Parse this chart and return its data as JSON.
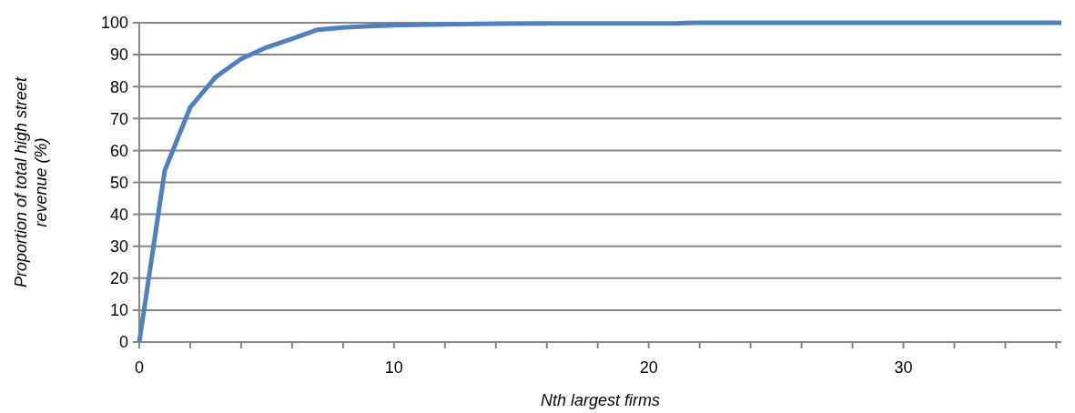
{
  "chart_data": {
    "type": "line",
    "xlabel": "Nth largest firms",
    "ylabel": "Proportion of total high street revenue (%)",
    "x": [
      0,
      1,
      2,
      3,
      4,
      5,
      6,
      7,
      8,
      9,
      10,
      12,
      14,
      16,
      18,
      21,
      22,
      26,
      30,
      36.2
    ],
    "series": [
      {
        "color": "#4f81bd",
        "values": [
          0,
          53.7,
          73.5,
          83,
          88.7,
          92.3,
          95,
          97.8,
          98.5,
          98.9,
          99.2,
          99.5,
          99.7,
          99.8,
          99.8,
          99.8,
          100,
          100,
          100,
          100
        ]
      }
    ],
    "xlim": [
      0,
      36.2
    ],
    "xticks": [
      0,
      {
        "value": 2,
        "label": null
      },
      {
        "value": 4,
        "label": null
      },
      {
        "value": 6,
        "label": null
      },
      {
        "value": 8,
        "label": null
      },
      10,
      {
        "value": 12,
        "label": null
      },
      {
        "value": 14,
        "label": null
      },
      {
        "value": 16,
        "label": null
      },
      {
        "value": 18,
        "label": null
      },
      20,
      {
        "value": 22,
        "label": null
      },
      {
        "value": 24,
        "label": null
      },
      {
        "value": 26,
        "label": null
      },
      {
        "value": 28,
        "label": null
      },
      30,
      {
        "value": 32,
        "label": null
      },
      {
        "value": 34,
        "label": null
      },
      {
        "value": 36,
        "label": null
      }
    ],
    "ylim": [
      0,
      100
    ],
    "yticks": [
      0,
      10,
      20,
      30,
      40,
      50,
      60,
      70,
      80,
      90,
      100
    ],
    "grid": "y",
    "marker": "none",
    "line_style": "solid"
  }
}
